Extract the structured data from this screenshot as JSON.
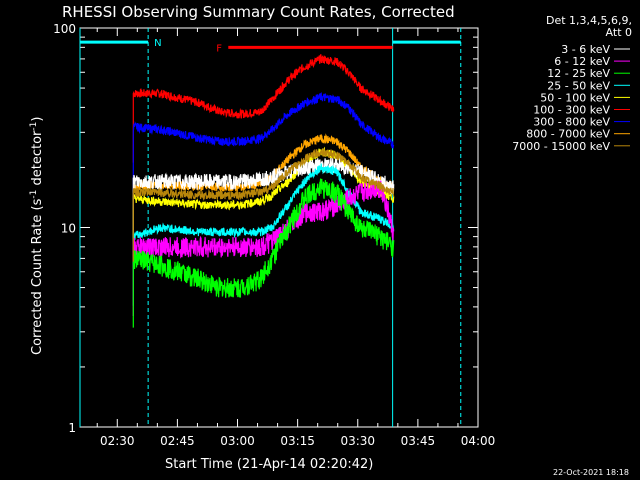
{
  "chart_data": {
    "type": "line",
    "title": "RHESSI Observing Summary Count Rates, Corrected",
    "xlabel": "Start Time (21-Apr-14 02:20:42)",
    "ylabel_main": "Corrected Count Rate (s",
    "ylabel_sup1": "-1",
    "ylabel_mid": " detector",
    "ylabel_sup2": "-1",
    "ylabel_end": ")",
    "y_scale": "log",
    "ylim": [
      1,
      100
    ],
    "xlim_minutes": [
      0,
      99.3
    ],
    "x_ticks": [
      "02:30",
      "02:45",
      "03:00",
      "03:15",
      "03:30",
      "03:45",
      "04:00"
    ],
    "y_ticks": [
      "1",
      "10",
      "100"
    ],
    "legend_header": [
      "Det 1,3,4,5,6,9,",
      "Att 0"
    ],
    "legend_position": "top-right",
    "series": [
      {
        "name": "3 - 6 keV",
        "color": "#ffffff",
        "x": [
          13.3,
          20,
          30,
          35,
          40,
          45,
          48,
          52,
          56,
          60,
          64,
          67,
          70,
          75,
          78.3
        ],
        "y": [
          17,
          17,
          17,
          17,
          17,
          17.5,
          18,
          19,
          20,
          20.5,
          20.5,
          20,
          19,
          17,
          16
        ]
      },
      {
        "name": "6 - 12 keV",
        "color": "#ff00ff",
        "x": [
          13.3,
          20,
          30,
          35,
          40,
          45,
          48,
          52,
          56,
          60,
          64,
          67,
          70,
          75,
          78.3
        ],
        "y": [
          8,
          8,
          8,
          8,
          8,
          8,
          8.5,
          10,
          12,
          12,
          13,
          14,
          15,
          16,
          9
        ]
      },
      {
        "name": "12 - 25 keV",
        "color": "#00ff00",
        "x": [
          13.3,
          20,
          30,
          35,
          40,
          45,
          48,
          52,
          56,
          60,
          64,
          67,
          70,
          75,
          78.3
        ],
        "y": [
          7,
          6.5,
          5.5,
          5,
          5,
          5.5,
          7,
          10,
          14,
          16,
          15,
          12,
          10,
          9,
          8
        ]
      },
      {
        "name": "25 - 50 keV",
        "color": "#00ffff",
        "x": [
          13.3,
          20,
          30,
          35,
          40,
          45,
          48,
          52,
          56,
          60,
          64,
          67,
          70,
          75,
          78.3
        ],
        "y": [
          9,
          10,
          9.5,
          9.5,
          9.5,
          9.5,
          10,
          13,
          17,
          20,
          19,
          15,
          12,
          11,
          10
        ]
      },
      {
        "name": "50 - 100 keV",
        "color": "#ffff00",
        "x": [
          13.3,
          20,
          30,
          35,
          40,
          45,
          48,
          52,
          56,
          60,
          64,
          67,
          70,
          75,
          78.3
        ],
        "y": [
          14,
          13.5,
          13,
          13,
          13,
          13.5,
          14.5,
          17,
          21,
          24,
          23,
          20,
          17,
          15,
          14
        ]
      },
      {
        "name": "100 - 300 keV",
        "color": "#ff0000",
        "x": [
          13.3,
          20,
          30,
          35,
          40,
          45,
          48,
          52,
          56,
          60,
          64,
          67,
          70,
          75,
          78.3
        ],
        "y": [
          47,
          47,
          42,
          38,
          37,
          38,
          44,
          55,
          64,
          70,
          68,
          60,
          50,
          43,
          39
        ]
      },
      {
        "name": "300 - 800 keV",
        "color": "#0000ff",
        "x": [
          13.3,
          20,
          30,
          35,
          40,
          45,
          48,
          52,
          56,
          60,
          64,
          67,
          70,
          75,
          78.3
        ],
        "y": [
          32,
          31,
          28,
          27,
          27,
          28,
          31,
          37,
          42,
          45,
          44,
          40,
          33,
          28,
          26
        ]
      },
      {
        "name": "800 - 7000 keV",
        "color": "#ffa500",
        "x": [
          13.3,
          20,
          30,
          35,
          40,
          45,
          48,
          52,
          56,
          60,
          64,
          67,
          70,
          75,
          78.3
        ],
        "y": [
          16,
          16.5,
          16,
          16,
          16,
          16.5,
          18,
          22,
          26,
          28,
          27,
          24,
          20,
          17,
          16
        ]
      },
      {
        "name": "7000 - 15000 keV",
        "color": "#b8860b",
        "x": [
          13.3,
          20,
          30,
          35,
          40,
          45,
          48,
          52,
          56,
          60,
          64,
          67,
          70,
          75,
          78.3
        ],
        "y": [
          15,
          15,
          14.5,
          14.5,
          14.5,
          15,
          16,
          19,
          22,
          24,
          23,
          21,
          18,
          16,
          15
        ]
      }
    ],
    "annotations": [
      {
        "text": "N",
        "color": "#00ffff",
        "x_range": [
          0,
          17
        ],
        "y": 85
      },
      {
        "text": "F",
        "color": "#ff0000",
        "x_range": [
          37,
          78
        ],
        "y": 80
      },
      {
        "text": "",
        "color": "#00ffff",
        "x_range": [
          78,
          95
        ],
        "y": 85
      }
    ],
    "vertical_markers": [
      {
        "x": 17,
        "color": "#00ffff",
        "style": "dashed"
      },
      {
        "x": 78,
        "color": "#00ffff",
        "style": "solid"
      },
      {
        "x": 95,
        "color": "#00ffff",
        "style": "dashed"
      },
      {
        "x": 0,
        "color": "#00ffff",
        "style": "solid"
      }
    ],
    "grid": false
  },
  "footer_timestamp": "22-Oct-2021 18:18"
}
